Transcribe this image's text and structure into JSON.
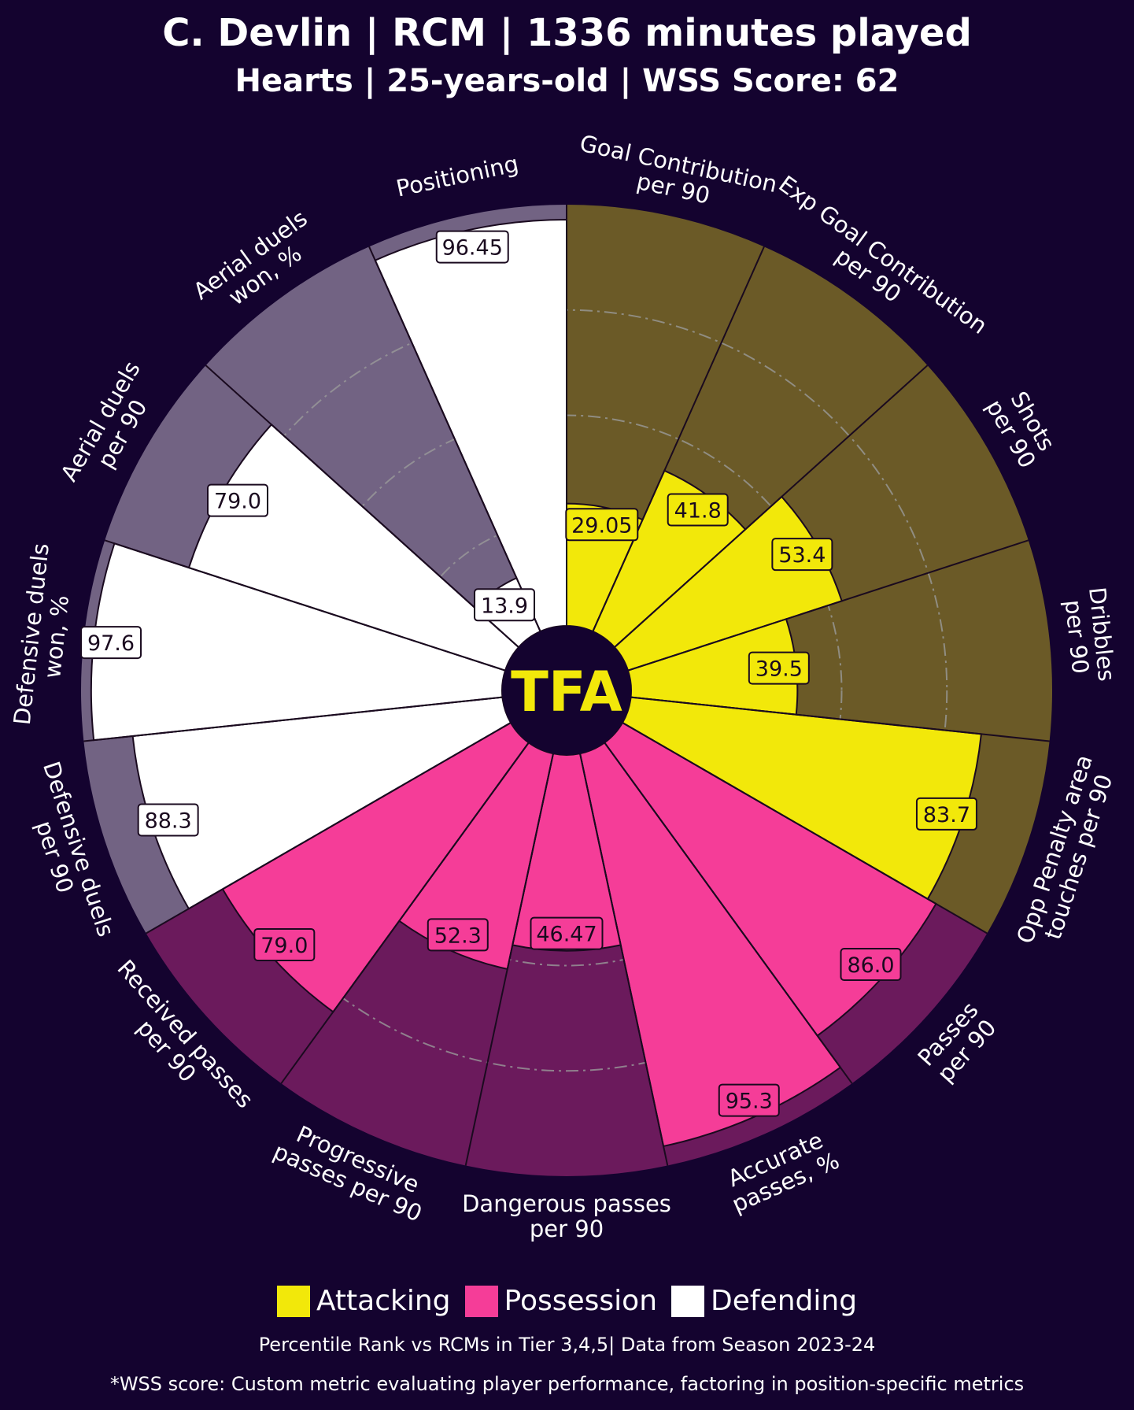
{
  "header": {
    "title": "C. Devlin | RCM | 1336 minutes played",
    "subtitle": "Hearts | 25-years-old | WSS Score: 62"
  },
  "center_logo": "TFA",
  "legend": [
    {
      "label": "Attacking",
      "color": "#f2e80a"
    },
    {
      "label": "Possession",
      "color": "#f53d98"
    },
    {
      "label": "Defending",
      "color": "#ffffff"
    }
  ],
  "footnotes": {
    "line1": "Percentile Rank vs RCMs in Tier 3,4,5| Data from Season 2023-24",
    "line2": "*WSS score: Custom metric evaluating player performance, factoring in position-specific metrics"
  },
  "colors": {
    "background": "#14032f",
    "attacking": "#f2e80a",
    "attacking_bg": "#6b5a27",
    "possession": "#f53d98",
    "possession_bg": "#6b1a5c",
    "defending": "#ffffff",
    "defending_bg": "#726383"
  },
  "chart_data": {
    "type": "pie",
    "subtype": "polar-pizza",
    "title": "C. Devlin | RCM | 1336 minutes played",
    "scale": [
      0,
      100
    ],
    "gridlines": [
      25,
      50,
      75
    ],
    "metrics": [
      {
        "label": "Goal Contribution\nper 90",
        "value": 29.05,
        "display": "29.05",
        "group": "Attacking"
      },
      {
        "label": "Exp Goal Contribution\nper 90",
        "value": 41.8,
        "display": "41.8",
        "group": "Attacking"
      },
      {
        "label": "Shots\nper 90",
        "value": 53.4,
        "display": "53.4",
        "group": "Attacking"
      },
      {
        "label": "Dribbles\nper 90",
        "value": 39.5,
        "display": "39.5",
        "group": "Attacking"
      },
      {
        "label": "Opp Penalty area\ntouches per 90",
        "value": 83.7,
        "display": "83.7",
        "group": "Attacking"
      },
      {
        "label": "Passes\nper 90",
        "value": 86.0,
        "display": "86.0",
        "group": "Possession"
      },
      {
        "label": "Accurate\npasses, %",
        "value": 95.3,
        "display": "95.3",
        "group": "Possession"
      },
      {
        "label": "Dangerous passes\nper 90",
        "value": 46.47,
        "display": "46.47",
        "group": "Possession"
      },
      {
        "label": "Progressive\npasses per 90",
        "value": 52.3,
        "display": "52.3",
        "group": "Possession"
      },
      {
        "label": "Received passes\nper 90",
        "value": 79.0,
        "display": "79.0",
        "group": "Possession"
      },
      {
        "label": "Defensive duels\nper 90",
        "value": 88.3,
        "display": "88.3",
        "group": "Defending"
      },
      {
        "label": "Defensive duels\nwon, %",
        "value": 97.6,
        "display": "97.6",
        "group": "Defending"
      },
      {
        "label": "Aerial duels\nper 90",
        "value": 79.0,
        "display": "79.0",
        "group": "Defending"
      },
      {
        "label": "Aerial duels\nwon, %",
        "value": 13.9,
        "display": "13.9",
        "group": "Defending"
      },
      {
        "label": "Positioning",
        "value": 96.45,
        "display": "96.45",
        "group": "Defending"
      }
    ]
  }
}
